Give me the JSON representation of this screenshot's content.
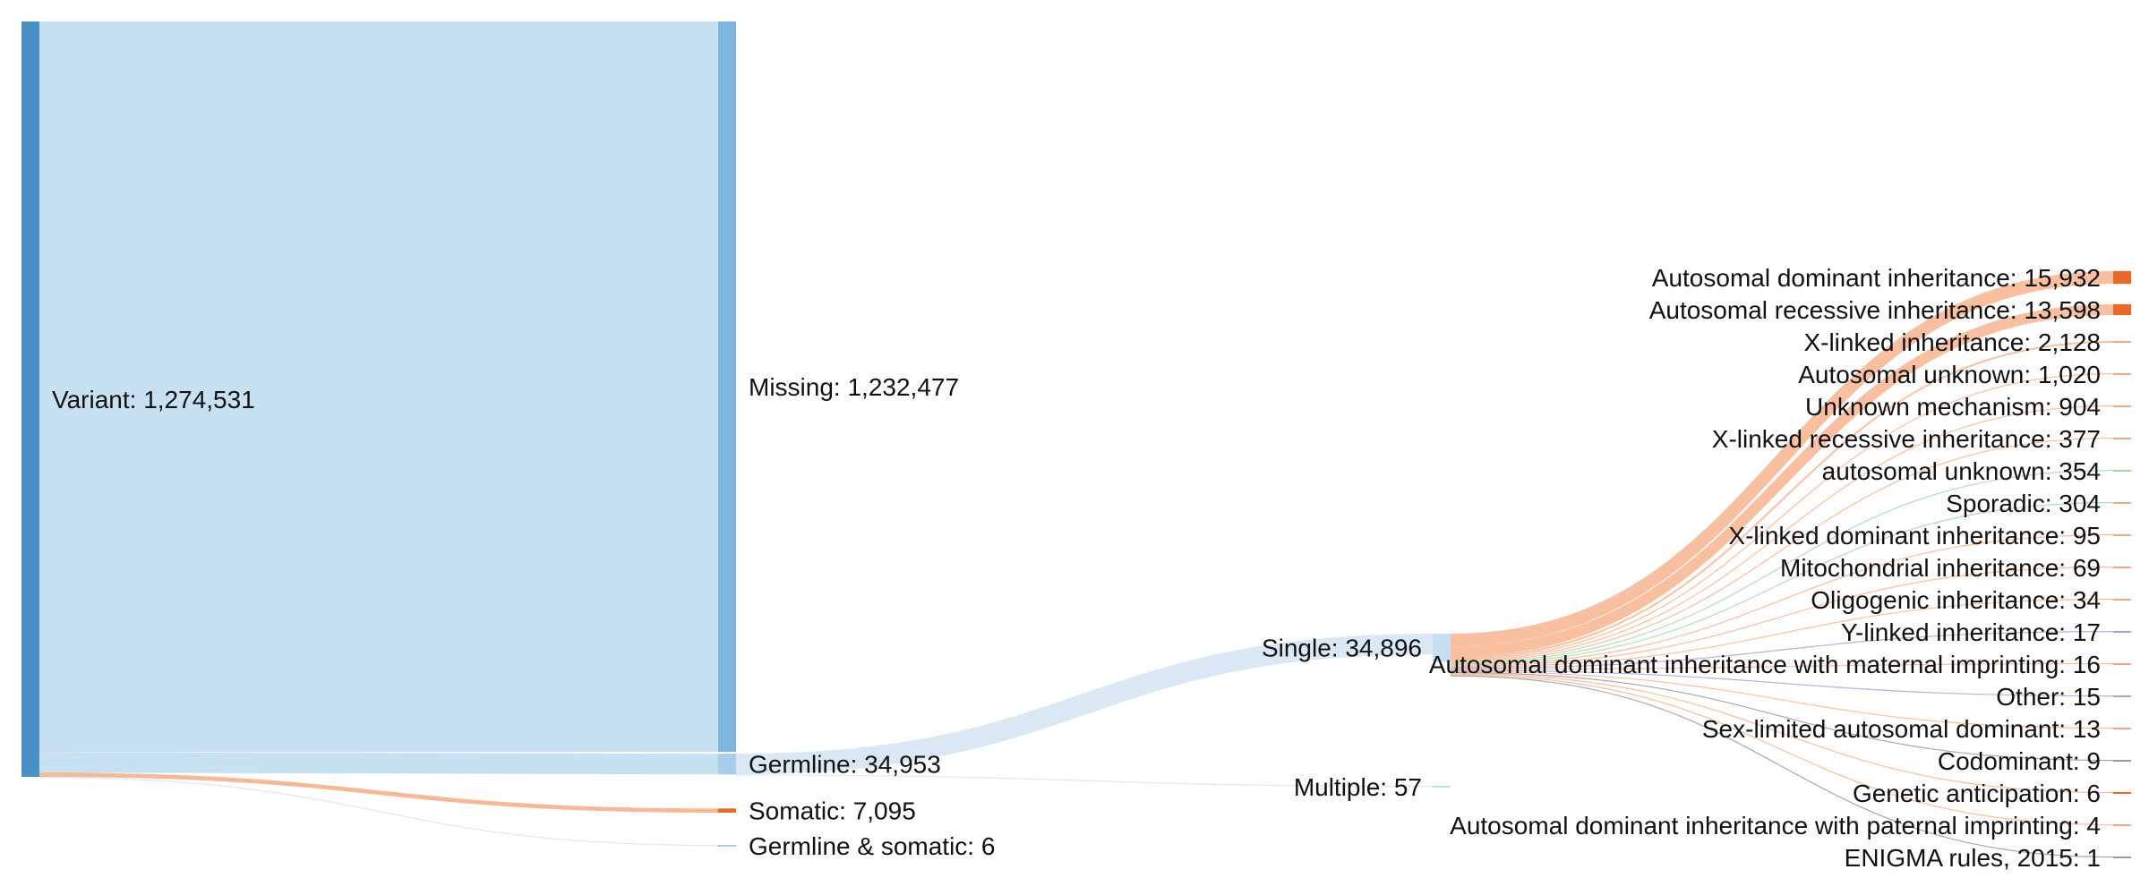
{
  "chart_data": {
    "type": "sankey",
    "title": "",
    "colors": {
      "variant_node": "#4a90c4",
      "blue_node": "#7fb6de",
      "light_blue_node": "#a9cde8",
      "pale_node": "#c6dff1",
      "orange_node": "#e8692b",
      "orange_pale_node": "#f4a882",
      "main_link": "#c5dff1",
      "blue_link": "#d8e7f4",
      "orange_link": "#f7b48f",
      "green_link": "#a6d7a8",
      "purple_link": "#a9a4d3",
      "grey_link": "#9a9a9a"
    },
    "levels": [
      [
        {
          "id": "variant",
          "label": "Variant: 1,274,531",
          "value": 1274531,
          "color": "variant_node"
        }
      ],
      [
        {
          "id": "missing",
          "label": "Missing: 1,232,477",
          "value": 1232477,
          "color": "blue_node"
        },
        {
          "id": "germline",
          "label": "Germline: 34,953",
          "value": 34953,
          "color": "light_blue_node"
        },
        {
          "id": "somatic",
          "label": "Somatic: 7,095",
          "value": 7095,
          "color": "orange_node"
        },
        {
          "id": "germsom",
          "label": "Germline & somatic: 6",
          "value": 6,
          "color": "light_blue_node"
        }
      ],
      [
        {
          "id": "single",
          "label": "Single: 34,896",
          "value": 34896,
          "color": "pale_node"
        },
        {
          "id": "multiple",
          "label": "Multiple: 57",
          "value": 57,
          "color": "pale_node"
        }
      ],
      [
        {
          "id": "ad",
          "label": "Autosomal dominant inheritance: 15,932",
          "value": 15932,
          "color": "orange_node"
        },
        {
          "id": "ar",
          "label": "Autosomal recessive inheritance: 13,598",
          "value": 13598,
          "color": "orange_node"
        },
        {
          "id": "xl",
          "label": "X-linked inheritance: 2,128",
          "value": 2128,
          "color": "orange_pale_node"
        },
        {
          "id": "au1",
          "label": "Autosomal unknown: 1,020",
          "value": 1020,
          "color": "orange_pale_node"
        },
        {
          "id": "um",
          "label": "Unknown mechanism: 904",
          "value": 904,
          "color": "orange_pale_node"
        },
        {
          "id": "xlr",
          "label": "X-linked recessive inheritance: 377",
          "value": 377,
          "color": "orange_pale_node"
        },
        {
          "id": "au2",
          "label": "autosomal unknown: 354",
          "value": 354,
          "color": "green_link"
        },
        {
          "id": "sp",
          "label": "Sporadic: 304",
          "value": 304,
          "color": "orange_pale_node"
        },
        {
          "id": "xld",
          "label": "X-linked dominant inheritance: 95",
          "value": 95,
          "color": "orange_pale_node"
        },
        {
          "id": "mi",
          "label": "Mitochondrial inheritance: 69",
          "value": 69,
          "color": "orange_pale_node"
        },
        {
          "id": "og",
          "label": "Oligogenic inheritance: 34",
          "value": 34,
          "color": "orange_pale_node"
        },
        {
          "id": "yl",
          "label": "Y-linked inheritance: 17",
          "value": 17,
          "color": "purple_link"
        },
        {
          "id": "admi",
          "label": "Autosomal dominant inheritance with maternal imprinting: 16",
          "value": 16,
          "color": "orange_pale_node"
        },
        {
          "id": "ot",
          "label": "Other: 15",
          "value": 15,
          "color": "purple_link"
        },
        {
          "id": "slad",
          "label": "Sex-limited autosomal dominant: 13",
          "value": 13,
          "color": "orange_pale_node"
        },
        {
          "id": "cod",
          "label": "Codominant: 9",
          "value": 9,
          "color": "grey_link"
        },
        {
          "id": "ga",
          "label": "Genetic anticipation: 6",
          "value": 6,
          "color": "orange_node"
        },
        {
          "id": "adpi",
          "label": "Autosomal dominant inheritance with paternal imprinting: 4",
          "value": 4,
          "color": "orange_pale_node"
        },
        {
          "id": "en",
          "label": "ENIGMA rules, 2015: 1",
          "value": 1,
          "color": "grey_link"
        }
      ]
    ],
    "links": [
      {
        "source": "variant",
        "target": "missing",
        "value": 1232477,
        "color": "main_link"
      },
      {
        "source": "variant",
        "target": "germline",
        "value": 34953,
        "color": "main_link"
      },
      {
        "source": "variant",
        "target": "somatic",
        "value": 7095,
        "color": "orange_link"
      },
      {
        "source": "variant",
        "target": "germsom",
        "value": 6,
        "color": "blue_link"
      },
      {
        "source": "germline",
        "target": "single",
        "value": 34896,
        "color": "blue_link"
      },
      {
        "source": "germline",
        "target": "multiple",
        "value": 57,
        "color": "blue_link"
      },
      {
        "source": "single",
        "target": "ad",
        "value": 15932,
        "color": "orange_link"
      },
      {
        "source": "single",
        "target": "ar",
        "value": 13598,
        "color": "orange_link"
      },
      {
        "source": "single",
        "target": "xl",
        "value": 2128,
        "color": "orange_link"
      },
      {
        "source": "single",
        "target": "au1",
        "value": 1020,
        "color": "orange_link"
      },
      {
        "source": "single",
        "target": "um",
        "value": 904,
        "color": "orange_link"
      },
      {
        "source": "single",
        "target": "xlr",
        "value": 377,
        "color": "orange_link"
      },
      {
        "source": "single",
        "target": "au2",
        "value": 354,
        "color": "green_link"
      },
      {
        "source": "single",
        "target": "sp",
        "value": 304,
        "color": "green_link"
      },
      {
        "source": "single",
        "target": "xld",
        "value": 95,
        "color": "orange_link"
      },
      {
        "source": "single",
        "target": "mi",
        "value": 69,
        "color": "orange_link"
      },
      {
        "source": "single",
        "target": "og",
        "value": 34,
        "color": "orange_link"
      },
      {
        "source": "single",
        "target": "yl",
        "value": 17,
        "color": "purple_link"
      },
      {
        "source": "single",
        "target": "admi",
        "value": 16,
        "color": "orange_link"
      },
      {
        "source": "single",
        "target": "ot",
        "value": 15,
        "color": "purple_link"
      },
      {
        "source": "single",
        "target": "slad",
        "value": 13,
        "color": "orange_link"
      },
      {
        "source": "single",
        "target": "cod",
        "value": 9,
        "color": "grey_link"
      },
      {
        "source": "single",
        "target": "ga",
        "value": 6,
        "color": "orange_link"
      },
      {
        "source": "single",
        "target": "adpi",
        "value": 4,
        "color": "orange_link"
      },
      {
        "source": "single",
        "target": "en",
        "value": 1,
        "color": "grey_link"
      }
    ]
  }
}
